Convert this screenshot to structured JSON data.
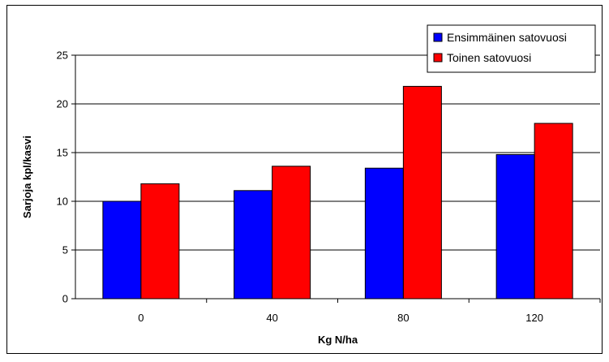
{
  "chart_data": {
    "type": "bar",
    "title": "",
    "xlabel": "Kg N/ha",
    "ylabel": "Sarjoja kpl/kasvi",
    "categories": [
      "0",
      "40",
      "80",
      "120"
    ],
    "ylim": [
      0,
      25
    ],
    "yticks": [
      0,
      5,
      10,
      15,
      20,
      25
    ],
    "grid": true,
    "legend_position": "top-right",
    "series": [
      {
        "name": "Ensimmäinen satovuosi",
        "color": "#0000ff",
        "values": [
          10.0,
          11.1,
          13.4,
          14.8
        ]
      },
      {
        "name": "Toinen satovuosi",
        "color": "#ff0000",
        "values": [
          11.8,
          13.6,
          21.8,
          18.0
        ]
      }
    ]
  }
}
